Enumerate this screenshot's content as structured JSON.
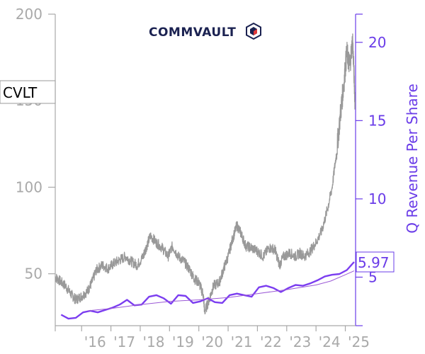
{
  "logo": {
    "text": "COMMVAULT",
    "icon": "cube-icon",
    "color": "#1b2251"
  },
  "ticker": "CVLT",
  "current_value_label": "5.97",
  "colors": {
    "price": "#999999",
    "revenue": "#7b3df0",
    "trend": "#9b59d6",
    "left_axis": "#a9a9a9",
    "right_axis": "#6a3ce8"
  },
  "chart_data": {
    "type": "line",
    "ylabel_left": "",
    "ylabel_right": "Q Revenue Per Share",
    "xlabel": "",
    "x_tick_labels": [
      "'16",
      "'17",
      "'18",
      "'19",
      "'20",
      "'21",
      "'22",
      "'23",
      "'24",
      "'25"
    ],
    "x_tick_years": [
      2016,
      2017,
      2018,
      2019,
      2020,
      2021,
      2022,
      2023,
      2024,
      2025
    ],
    "xlim": [
      2015.1,
      2025.35
    ],
    "ylim_left": [
      20,
      200
    ],
    "ylim_right": [
      1.9,
      21.8
    ],
    "yticks_left": [
      50,
      100,
      150,
      200
    ],
    "yticks_right": [
      5,
      10,
      15,
      20
    ],
    "grid": false,
    "series": [
      {
        "axis": "left",
        "style": "noisy-price",
        "x": [
          2015.1,
          2015.25,
          2015.45,
          2015.65,
          2015.8,
          2016.0,
          2016.2,
          2016.35,
          2016.5,
          2016.7,
          2016.9,
          2017.1,
          2017.3,
          2017.5,
          2017.7,
          2017.9,
          2018.1,
          2018.2,
          2018.35,
          2018.55,
          2018.75,
          2018.95,
          2019.1,
          2019.3,
          2019.5,
          2019.7,
          2019.85,
          2020.0,
          2020.15,
          2020.2,
          2020.35,
          2020.5,
          2020.7,
          2020.85,
          2021.0,
          2021.15,
          2021.3,
          2021.45,
          2021.6,
          2021.8,
          2022.0,
          2022.2,
          2022.4,
          2022.6,
          2022.75,
          2022.9,
          2023.1,
          2023.3,
          2023.45,
          2023.6,
          2023.8,
          2024.0,
          2024.2,
          2024.4,
          2024.55,
          2024.7,
          2024.85,
          2024.95,
          2025.05,
          2025.15,
          2025.25,
          2025.33
        ],
        "values": [
          48,
          46,
          43,
          38,
          35,
          37,
          40,
          45,
          52,
          55,
          53,
          56,
          58,
          60,
          57,
          55,
          60,
          65,
          72,
          68,
          65,
          60,
          66,
          60,
          57,
          52,
          47,
          45,
          38,
          28,
          35,
          43,
          45,
          53,
          60,
          70,
          78,
          73,
          66,
          65,
          63,
          60,
          65,
          64,
          55,
          60,
          62,
          60,
          62,
          60,
          63,
          68,
          75,
          88,
          100,
          120,
          145,
          160,
          178,
          170,
          185,
          150
        ]
      },
      {
        "name": "",
        "axis": "right",
        "style": "revenue",
        "x": [
          2015.3,
          2015.55,
          2015.8,
          2016.05,
          2016.3,
          2016.55,
          2016.8,
          2017.05,
          2017.3,
          2017.55,
          2017.8,
          2018.05,
          2018.3,
          2018.55,
          2018.8,
          2019.05,
          2019.3,
          2019.55,
          2019.8,
          2020.05,
          2020.3,
          2020.55,
          2020.8,
          2021.05,
          2021.3,
          2021.55,
          2021.8,
          2022.05,
          2022.3,
          2022.55,
          2022.8,
          2023.05,
          2023.3,
          2023.55,
          2023.8,
          2024.05,
          2024.3,
          2024.55,
          2024.8,
          2025.05,
          2025.3
        ],
        "values": [
          2.6,
          2.35,
          2.4,
          2.75,
          2.85,
          2.75,
          2.9,
          3.05,
          3.25,
          3.55,
          3.2,
          3.25,
          3.75,
          3.85,
          3.65,
          3.3,
          3.85,
          3.8,
          3.35,
          3.45,
          3.65,
          3.4,
          3.35,
          3.85,
          3.95,
          3.85,
          3.75,
          4.35,
          4.45,
          4.3,
          4.05,
          4.3,
          4.5,
          4.45,
          4.6,
          4.8,
          5.05,
          5.15,
          5.2,
          5.45,
          5.97
        ]
      },
      {
        "name": "",
        "axis": "right",
        "style": "trend",
        "x": [
          2016.2,
          2017.0,
          2018.0,
          2019.0,
          2020.0,
          2021.0,
          2022.0,
          2023.0,
          2024.0,
          2024.5,
          2025.0,
          2025.3
        ],
        "values": [
          2.85,
          3.0,
          3.25,
          3.45,
          3.55,
          3.7,
          3.95,
          4.2,
          4.5,
          4.75,
          5.15,
          5.4
        ]
      }
    ]
  }
}
